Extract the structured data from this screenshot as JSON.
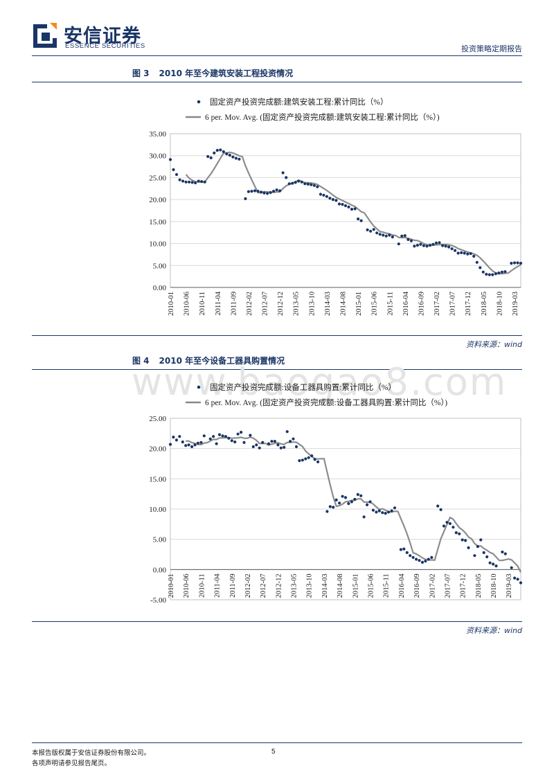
{
  "header": {
    "logo_cn": "安信证券",
    "logo_en": "ESSENCE SECURITIES",
    "report_type": "投资策略定期报告"
  },
  "figures": [
    {
      "label": "图 3",
      "title": "2010 年至今建筑安装工程投资情况",
      "source": "资料来源：wind"
    },
    {
      "label": "图 4",
      "title": "2010 年至今设备工器具购置情况",
      "source": "资料来源：wind"
    }
  ],
  "watermark": "www.baogao8.com",
  "footer": {
    "line1": "本报告版权属于安信证券股份有限公司。",
    "line2": "各项声明请参见报告尾页。",
    "page": "5"
  },
  "chart_data": [
    {
      "type": "scatter",
      "legend": [
        "固定资产投资完成额:建筑安装工程:累计同比（%）",
        "6 per. Mov. Avg. (固定资产投资完成额:建筑安装工程:累计同比（%）)"
      ],
      "ylim": [
        0,
        35
      ],
      "yticks": [
        "35.00",
        "30.00",
        "25.00",
        "20.00",
        "15.00",
        "10.00",
        "5.00",
        "0.00"
      ],
      "xticks": [
        "2010-01",
        "2010-06",
        "2010-11",
        "2011-04",
        "2011-09",
        "2012-02",
        "2012-07",
        "2012-12",
        "2013-05",
        "2013-10",
        "2014-03",
        "2014-08",
        "2015-01",
        "2015-06",
        "2015-11",
        "2016-04",
        "2016-09",
        "2017-02",
        "2017-07",
        "2017-12",
        "2018-05",
        "2018-10",
        "2019-03"
      ],
      "start": "2010-01",
      "values": [
        29.1,
        26.8,
        25.7,
        24.5,
        24.2,
        24.0,
        24.0,
        23.9,
        23.8,
        24.2,
        24.1,
        24.0,
        29.8,
        29.5,
        30.6,
        31.2,
        31.3,
        30.9,
        30.4,
        30.1,
        29.7,
        29.4,
        29.2,
        null,
        20.2,
        21.8,
        21.9,
        22.0,
        21.9,
        21.7,
        21.5,
        21.4,
        21.6,
        21.9,
        22.2,
        22.0,
        26.1,
        25.0,
        23.6,
        23.7,
        23.9,
        24.2,
        24.0,
        23.6,
        23.5,
        23.4,
        23.2,
        22.9,
        21.2,
        21.0,
        20.7,
        20.3,
        20.0,
        19.8,
        19.0,
        18.9,
        18.6,
        18.3,
        17.8,
        17.9,
        15.6,
        15.2,
        null,
        13.1,
        12.8,
        13.2,
        12.4,
        12.1,
        11.9,
        11.7,
        11.9,
        11.5,
        null,
        9.9,
        11.7,
        11.8,
        10.9,
        10.6,
        9.4,
        9.6,
        9.8,
        9.5,
        9.4,
        9.6,
        9.8,
        10.1,
        10.2,
        9.5,
        9.4,
        9.2,
        8.8,
        8.4,
        7.8,
        7.9,
        7.8,
        7.6,
        7.7,
        7.1,
        5.7,
        4.5,
        3.5,
        3.0,
        2.9,
        2.9,
        3.1,
        3.3,
        3.5,
        3.6,
        null,
        5.5,
        5.6,
        5.6,
        5.5
      ],
      "moving_average": "6 per."
    },
    {
      "type": "scatter",
      "legend": [
        "固定资产投资完成额:设备工器具购置:累计同比（%）",
        "6 per. Mov. Avg. (固定资产投资完成额:设备工器具购置:累计同比（%）)"
      ],
      "ylim": [
        -5,
        25
      ],
      "yticks": [
        "25.00",
        "20.00",
        "15.00",
        "10.00",
        "5.00",
        "0.00",
        "-5.00"
      ],
      "xticks": [
        "2010-01",
        "2010-06",
        "2010-11",
        "2011-04",
        "2011-09",
        "2012-02",
        "2012-07",
        "2012-12",
        "2013-05",
        "2013-10",
        "2014-03",
        "2014-08",
        "2015-01",
        "2015-06",
        "2015-11",
        "2016-04",
        "2016-09",
        "2017-02",
        "2017-07",
        "2017-12",
        "2018-05",
        "2018-10",
        "2019-03"
      ],
      "start": "2010-01",
      "values": [
        20.7,
        21.9,
        21.4,
        22.0,
        21.1,
        20.5,
        20.6,
        20.3,
        20.6,
        20.9,
        21.0,
        22.1,
        null,
        21.6,
        22.0,
        20.8,
        22.3,
        22.1,
        22.0,
        21.7,
        21.3,
        21.1,
        22.4,
        22.7,
        21.0,
        null,
        22.2,
        20.3,
        20.6,
        20.1,
        21.0,
        null,
        20.8,
        21.2,
        21.2,
        20.6,
        20.1,
        20.2,
        22.8,
        21.2,
        21.6,
        20.3,
        18.0,
        18.1,
        18.3,
        18.5,
        18.8,
        18.2,
        17.8,
        null,
        null,
        9.6,
        10.4,
        10.3,
        11.5,
        11.0,
        12.1,
        11.9,
        10.9,
        11.2,
        11.6,
        12.4,
        12.2,
        8.7,
        10.7,
        11.2,
        9.8,
        9.5,
        9.7,
        9.4,
        9.3,
        9.5,
        9.7,
        10.2,
        null,
        3.3,
        3.4,
        2.8,
        2.3,
        2.0,
        1.7,
        1.5,
        1.2,
        1.4,
        1.7,
        2.0,
        null,
        10.5,
        9.9,
        7.2,
        7.8,
        7.6,
        7.0,
        6.1,
        5.9,
        4.9,
        4.8,
        3.6,
        null,
        2.3,
        3.8,
        4.9,
        2.8,
        2.1,
        1.1,
        0.9,
        0.6,
        null,
        2.9,
        2.6,
        null,
        0.3,
        -1.4,
        -1.6,
        -2.2
      ]
    }
  ]
}
